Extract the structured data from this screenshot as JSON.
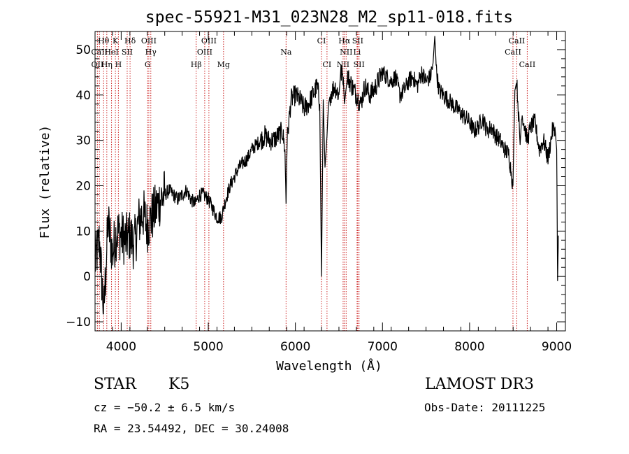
{
  "chart_data": {
    "type": "line",
    "title": "spec-55921-M31_023N28_M2_sp11-018.fits",
    "xlabel": "Wavelength (Å)",
    "ylabel": "Flux (relative)",
    "xlim": [
      3700,
      9100
    ],
    "ylim": [
      -12,
      54
    ],
    "xticks": [
      4000,
      5000,
      6000,
      7000,
      8000,
      9000
    ],
    "xtick_labels": [
      "4000",
      "5000",
      "6000",
      "7000",
      "8000",
      "9000"
    ],
    "yticks": [
      -10,
      0,
      10,
      20,
      30,
      40,
      50
    ],
    "ytick_labels": [
      "−10",
      "0",
      "10",
      "20",
      "30",
      "40",
      "50"
    ],
    "series": [
      {
        "name": "flux",
        "x": [
          3700,
          3750,
          3800,
          3850,
          3900,
          3950,
          4000,
          4050,
          4100,
          4150,
          4200,
          4250,
          4300,
          4350,
          4400,
          4450,
          4500,
          4550,
          4600,
          4650,
          4700,
          4750,
          4800,
          4850,
          4900,
          4950,
          5000,
          5050,
          5100,
          5150,
          5200,
          5250,
          5300,
          5350,
          5400,
          5450,
          5500,
          5550,
          5600,
          5650,
          5700,
          5750,
          5800,
          5850,
          5880,
          5893,
          5905,
          5950,
          6000,
          6050,
          6100,
          6150,
          6200,
          6250,
          6280,
          6300,
          6320,
          6340,
          6363,
          6380,
          6400,
          6450,
          6500,
          6520,
          6550,
          6563,
          6580,
          6600,
          6650,
          6700,
          6750,
          6800,
          6850,
          6900,
          6950,
          7000,
          7050,
          7100,
          7150,
          7200,
          7250,
          7300,
          7350,
          7400,
          7450,
          7500,
          7550,
          7580,
          7600,
          7620,
          7650,
          7700,
          7750,
          7800,
          7850,
          7900,
          7950,
          8000,
          8050,
          8100,
          8150,
          8200,
          8250,
          8300,
          8350,
          8400,
          8450,
          8498,
          8520,
          8542,
          8580,
          8600,
          8662,
          8700,
          8750,
          8800,
          8850,
          8900,
          8950,
          8980,
          9000,
          9010,
          9020
        ],
        "y": [
          3,
          8,
          -8,
          12,
          5,
          10,
          9,
          8,
          9,
          7,
          12,
          14,
          11,
          13,
          15,
          17,
          18,
          19,
          18,
          17,
          18,
          19,
          17,
          16,
          18,
          18,
          17,
          15,
          13,
          13,
          17,
          20,
          22,
          24,
          25,
          26,
          28,
          29,
          30,
          31,
          30,
          30,
          31,
          32,
          28,
          16,
          30,
          39,
          40,
          39,
          37,
          38,
          40,
          42,
          38,
          0,
          39,
          24,
          31,
          38,
          40,
          42,
          40,
          45,
          44,
          38,
          41,
          44,
          42,
          40,
          38,
          42,
          40,
          41,
          43,
          45,
          44,
          43,
          44,
          40,
          41,
          43,
          44,
          42,
          45,
          43,
          44,
          47,
          53,
          45,
          41,
          40,
          39,
          38,
          37,
          36,
          35,
          34,
          32,
          33,
          35,
          32,
          33,
          31,
          30,
          28,
          27,
          20,
          41,
          43,
          29,
          36,
          30,
          33,
          34,
          28,
          30,
          26,
          32,
          33,
          28,
          -1,
          9
        ]
      }
    ],
    "lines": [
      {
        "label": "Hθ",
        "wave": 3798,
        "row": 1
      },
      {
        "label": "OII",
        "wave": 3727,
        "row": 3
      },
      {
        "label": "CaII",
        "wave": 3750,
        "row": 2
      },
      {
        "label": "Hη",
        "wave": 3835,
        "row": 3
      },
      {
        "label": "HeI",
        "wave": 3889,
        "row": 2
      },
      {
        "label": "K",
        "wave": 3934,
        "row": 1
      },
      {
        "label": "H",
        "wave": 3968,
        "row": 3
      },
      {
        "label": "SII",
        "wave": 4069,
        "row": 2
      },
      {
        "label": "Hδ",
        "wave": 4102,
        "row": 1
      },
      {
        "label": "OIII",
        "wave": 4317,
        "row": 1
      },
      {
        "label": "Hγ",
        "wave": 4340,
        "row": 2
      },
      {
        "label": "G",
        "wave": 4304,
        "row": 3
      },
      {
        "label": "Hβ",
        "wave": 4861,
        "row": 3
      },
      {
        "label": "OIII",
        "wave": 4959,
        "row": 2
      },
      {
        "label": "OIII",
        "wave": 5007,
        "row": 1
      },
      {
        "label": "Mg",
        "wave": 5175,
        "row": 3
      },
      {
        "label": "Na",
        "wave": 5893,
        "row": 2
      },
      {
        "label": "CI",
        "wave": 6300,
        "row": 1
      },
      {
        "label": "CI",
        "wave": 6363,
        "row": 3
      },
      {
        "label": "Hα",
        "wave": 6563,
        "row": 1
      },
      {
        "label": "NII",
        "wave": 6583,
        "row": 2
      },
      {
        "label": "NII",
        "wave": 6548,
        "row": 3
      },
      {
        "label": "SII",
        "wave": 6716,
        "row": 1
      },
      {
        "label": "Li",
        "wave": 6708,
        "row": 2
      },
      {
        "label": "SII",
        "wave": 6731,
        "row": 3
      },
      {
        "label": "CaII",
        "wave": 8498,
        "row": 2
      },
      {
        "label": "CaII",
        "wave": 8542,
        "row": 1
      },
      {
        "label": "CaII",
        "wave": 8662,
        "row": 3
      }
    ]
  },
  "info": {
    "class": "STAR",
    "subclass": "K5",
    "survey": "LAMOST DR3",
    "cz": "cz = −50.2 ± 6.5 km/s",
    "obsdate": "Obs-Date: 20111225",
    "radec": "RA =  23.54492, DEC =  30.24008"
  },
  "colors": {
    "axis": "#000000",
    "spectrum": "#000000",
    "lines": "#cc2222"
  }
}
